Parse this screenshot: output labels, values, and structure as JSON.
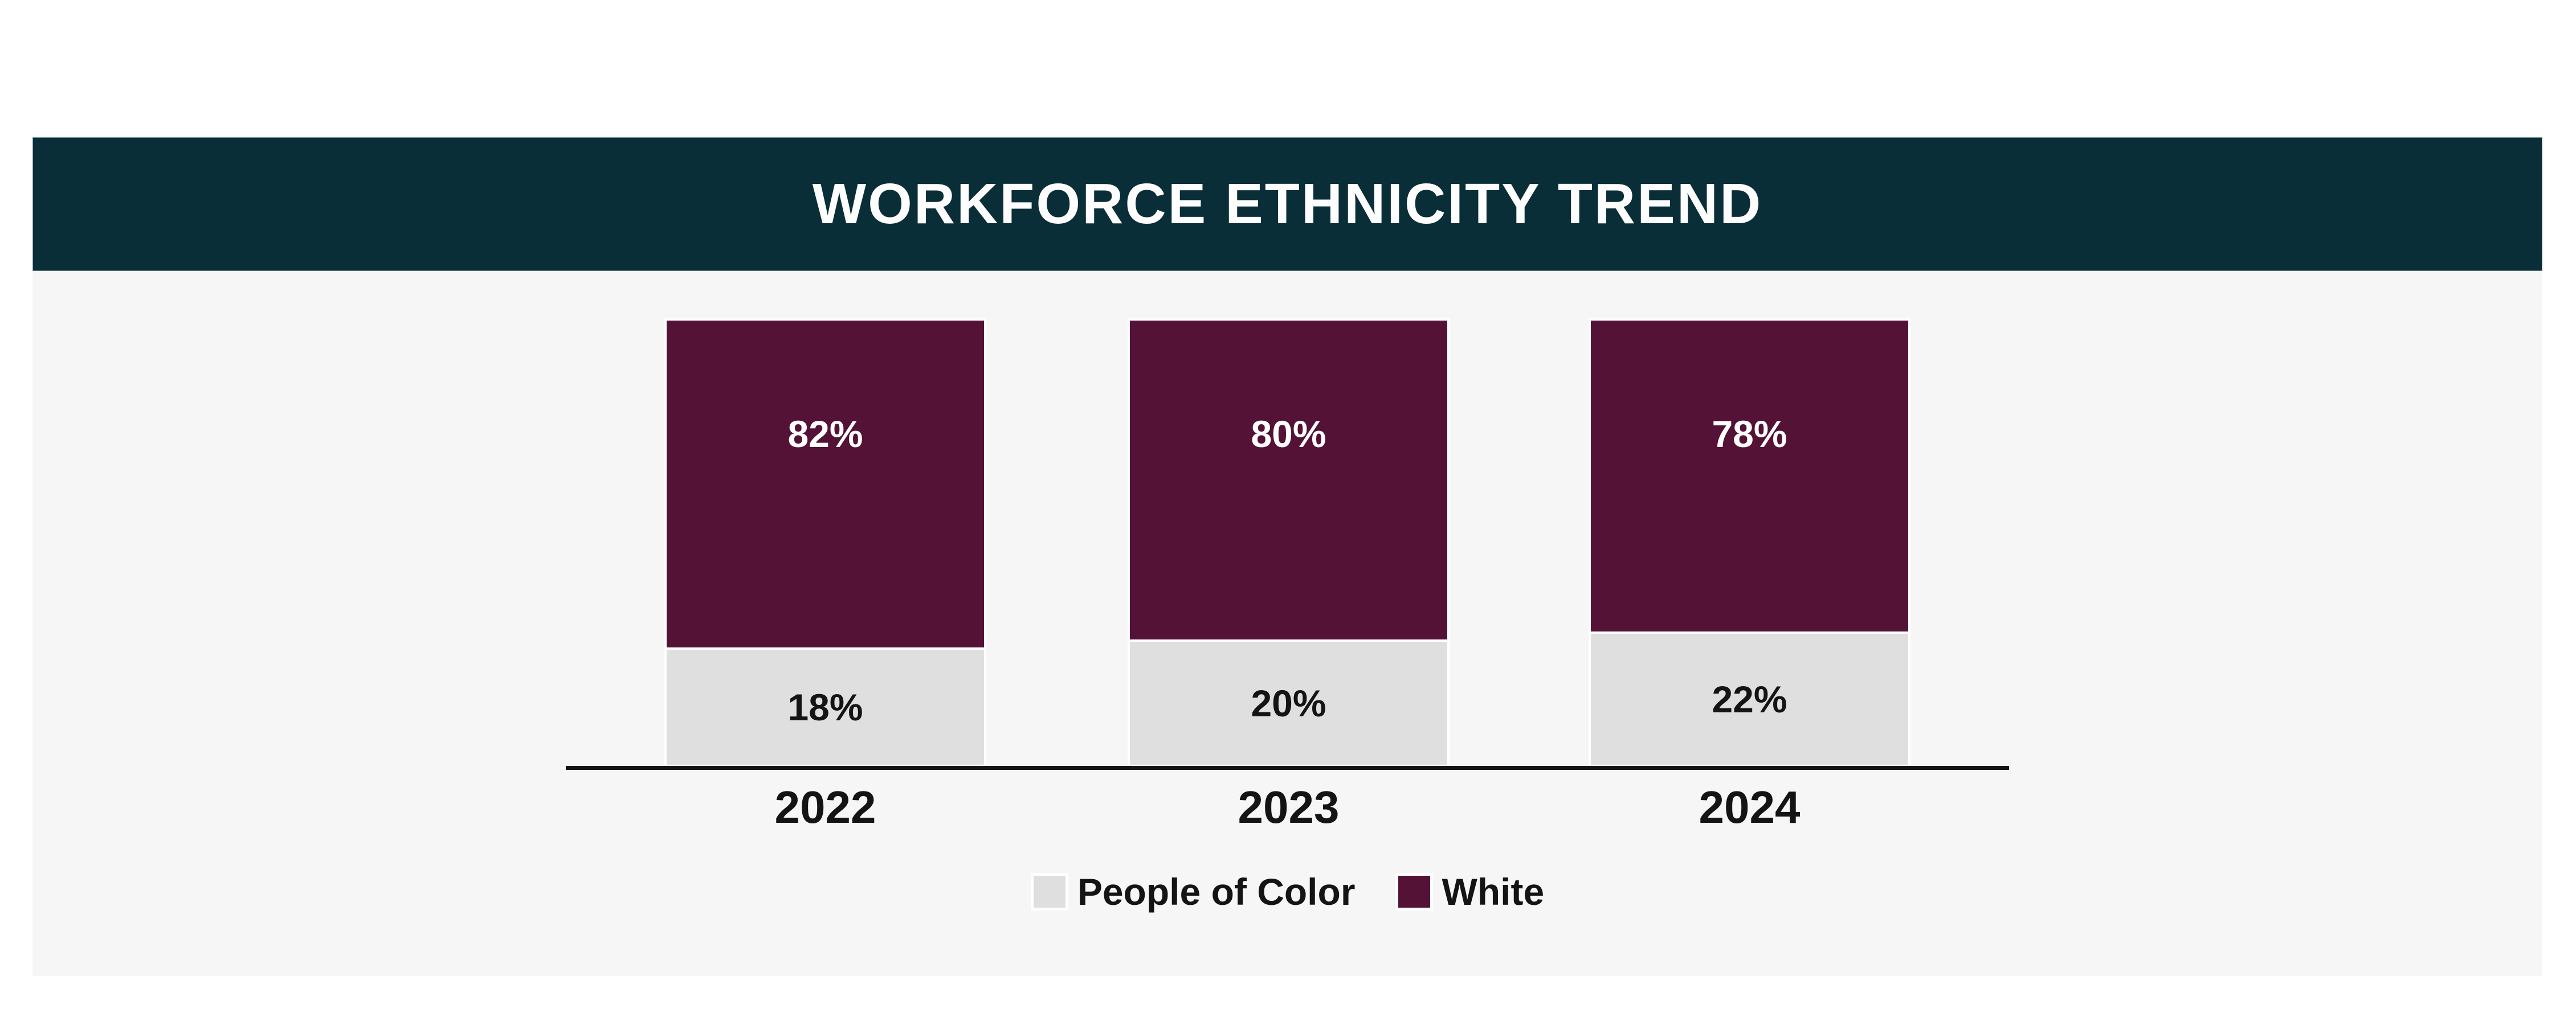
{
  "header": {
    "title": "WORKFORCE ETHNICITY TREND",
    "background": "#0a2e37",
    "text_color": "#fdfdfd"
  },
  "panel": {
    "background": "#f6f6f6"
  },
  "chart_data": {
    "type": "bar",
    "stacked": true,
    "orientation": "vertical",
    "title": "WORKFORCE ETHNICITY TREND",
    "categories": [
      "2022",
      "2023",
      "2024"
    ],
    "series": [
      {
        "name": "White",
        "color": "#541236",
        "label_color": "#ffffff",
        "values": [
          82,
          80,
          78
        ]
      },
      {
        "name": "People of Color",
        "color": "#dfdfdf",
        "label_color": "#141414",
        "values": [
          18,
          20,
          22
        ]
      }
    ],
    "value_suffix": "%",
    "ylim": [
      0,
      100
    ],
    "grid": false,
    "axis_line_color": "#141414",
    "legend_position": "bottom"
  },
  "legend": {
    "items": [
      {
        "label": "People of Color",
        "color": "#dfdfdf"
      },
      {
        "label": "White",
        "color": "#541236"
      }
    ]
  }
}
